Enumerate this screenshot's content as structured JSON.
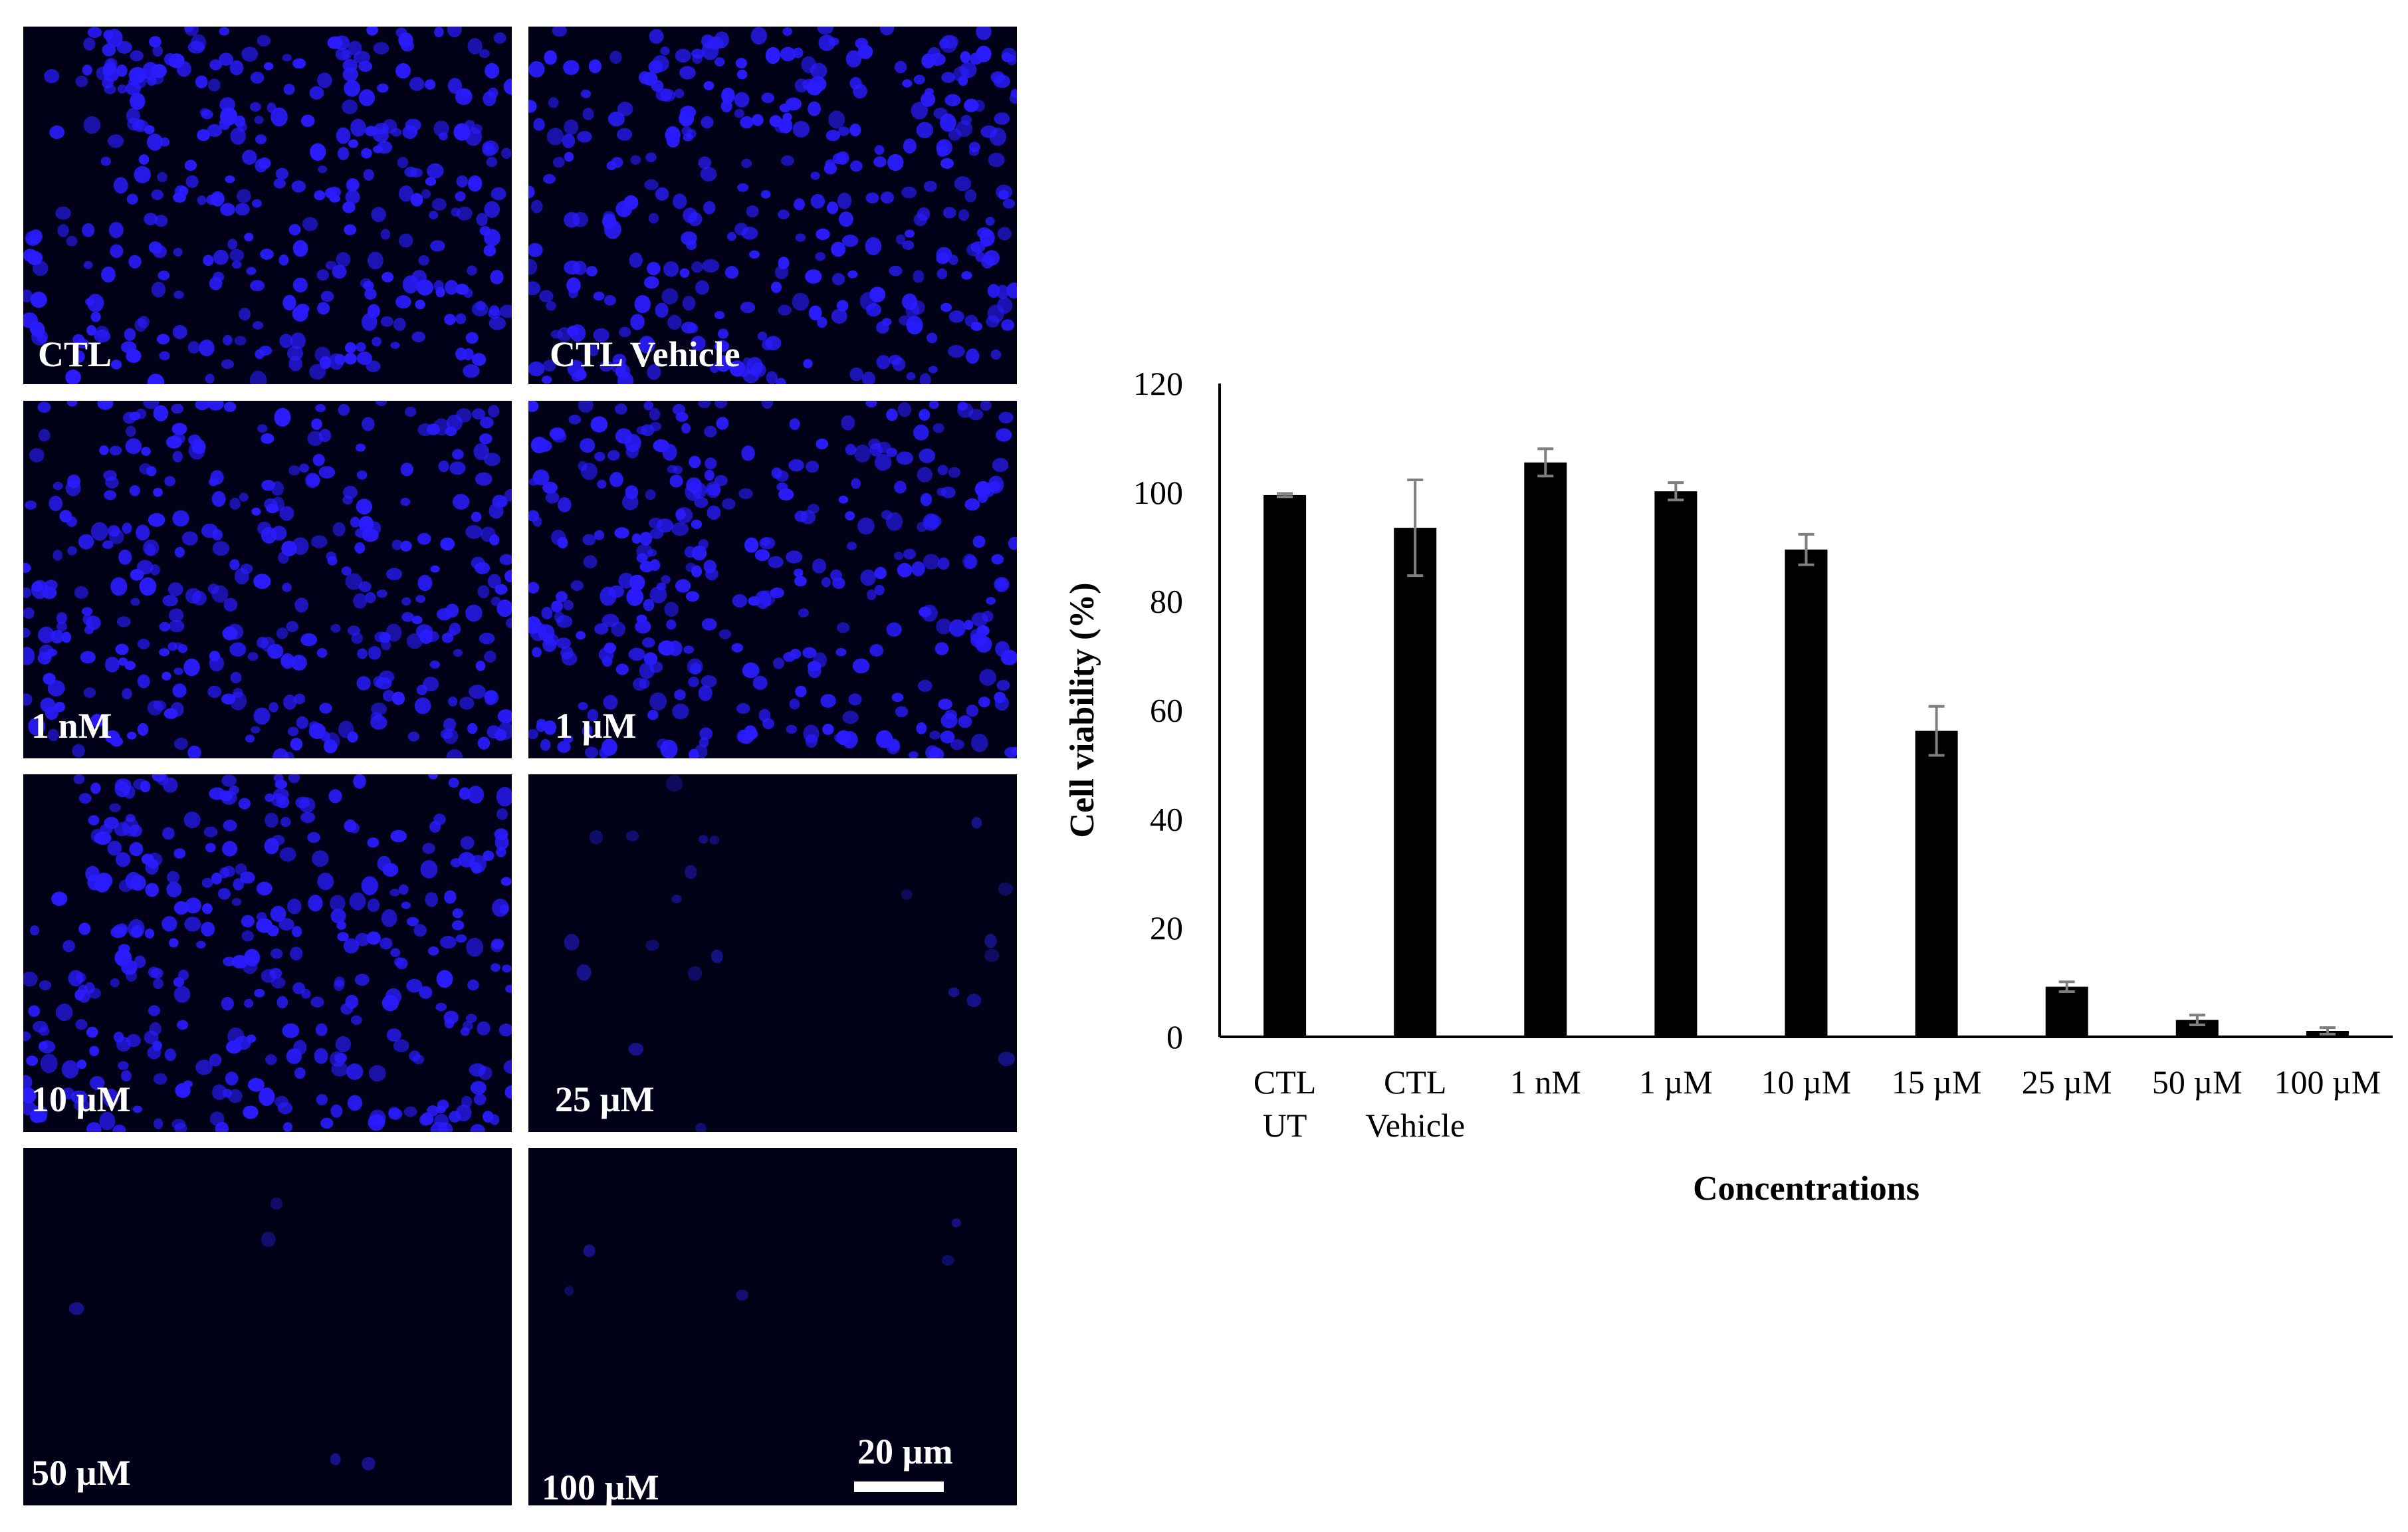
{
  "colors": {
    "panel_bg": "#010118",
    "nucleus": "#2a1cff",
    "nucleus_dim": "#17128a",
    "bar": "#000000",
    "error_bar": "#7f7f7f",
    "scalebar": "#ffffff"
  },
  "panels": [
    {
      "label": "CTL",
      "density": "high"
    },
    {
      "label": "CTL Vehicle",
      "density": "high"
    },
    {
      "label": "1 nM",
      "density": "high"
    },
    {
      "label": "1 µM",
      "density": "high"
    },
    {
      "label": "10 µM",
      "density": "high"
    },
    {
      "label": "25 µM",
      "density": "sparse"
    },
    {
      "label": "50 µM",
      "density": "very-sparse"
    },
    {
      "label": "100 µM",
      "density": "very-sparse"
    }
  ],
  "scale_bar": {
    "label": "20 µm"
  },
  "chart_data": {
    "type": "bar",
    "categories": [
      [
        "CTL",
        "UT"
      ],
      [
        "CTL",
        "Vehicle"
      ],
      [
        "1 nM"
      ],
      [
        "1 µM"
      ],
      [
        "10 µM"
      ],
      [
        "15 µM"
      ],
      [
        "25 µM"
      ],
      [
        "50 µM"
      ],
      [
        "100 µM"
      ]
    ],
    "values": [
      99.5,
      93.5,
      105.5,
      100.2,
      89.5,
      56.2,
      9.2,
      3.1,
      1.1
    ],
    "errors": [
      0.3,
      8.8,
      2.5,
      1.6,
      2.8,
      4.5,
      0.9,
      0.9,
      0.6
    ],
    "title": "",
    "xlabel": "Concentrations",
    "ylabel": "Cell viability (%)",
    "ylim": [
      0,
      120
    ],
    "yticks": [
      0,
      20,
      40,
      60,
      80,
      100,
      120
    ],
    "grid": false,
    "legend": "none"
  }
}
